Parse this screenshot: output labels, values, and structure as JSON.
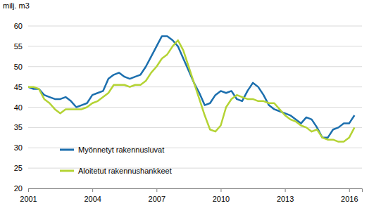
{
  "chart_data": {
    "type": "line",
    "ylabel": "milj. m3",
    "x": [
      2001,
      2001.25,
      2001.5,
      2001.75,
      2002,
      2002.25,
      2002.5,
      2002.75,
      2003,
      2003.25,
      2003.5,
      2003.75,
      2004,
      2004.25,
      2004.5,
      2004.75,
      2005,
      2005.25,
      2005.5,
      2005.75,
      2006,
      2006.25,
      2006.5,
      2006.75,
      2007,
      2007.25,
      2007.5,
      2007.75,
      2008,
      2008.25,
      2008.5,
      2008.75,
      2009,
      2009.25,
      2009.5,
      2009.75,
      2010,
      2010.25,
      2010.5,
      2010.75,
      2011,
      2011.25,
      2011.5,
      2011.75,
      2012,
      2012.25,
      2012.5,
      2012.75,
      2013,
      2013.25,
      2013.5,
      2013.75,
      2014,
      2014.25,
      2014.5,
      2014.75,
      2015,
      2015.25,
      2015.5,
      2015.75,
      2016,
      2016.25
    ],
    "series": [
      {
        "name": "Myönnetyt rakennusluvat",
        "color": "#1c6fae",
        "values": [
          45,
          44.5,
          44.5,
          43,
          42.5,
          42,
          42,
          42.5,
          41.5,
          40,
          40.5,
          41,
          43,
          43.5,
          44,
          47,
          48,
          48.5,
          47.5,
          47,
          47.5,
          48,
          50,
          52.5,
          55,
          57.5,
          57.5,
          56.5,
          55,
          52,
          49,
          46,
          43.5,
          40.5,
          41,
          43,
          44,
          43.5,
          44,
          42,
          41.5,
          44,
          46,
          45,
          43,
          40.5,
          39.5,
          39,
          38.5,
          38,
          37,
          36,
          37.5,
          37,
          35,
          32.5,
          32.5,
          34.5,
          35,
          36,
          36,
          38
        ]
      },
      {
        "name": "Aloitetut rakennushankkeet",
        "color": "#b4d334",
        "values": [
          45,
          45,
          44.5,
          42,
          41,
          39.5,
          38.5,
          39.5,
          39.5,
          39.5,
          39.5,
          40,
          41,
          41.5,
          42.5,
          43.5,
          45.5,
          45.5,
          45.5,
          45,
          45.5,
          45.5,
          46.5,
          48.5,
          50,
          52,
          53,
          55,
          56.5,
          54,
          50,
          46,
          42,
          38,
          34.5,
          34,
          35.5,
          40,
          42,
          43,
          42.5,
          42,
          42,
          41.5,
          41.5,
          41,
          41,
          39.5,
          38,
          37,
          36.5,
          35.5,
          35,
          34,
          34.5,
          32.5,
          32,
          32,
          31.5,
          31.5,
          32.5,
          35
        ]
      }
    ],
    "xlim": [
      2001,
      2016.6
    ],
    "xticks": [
      2001,
      2004,
      2007,
      2010,
      2013,
      2016
    ],
    "ylim": [
      20,
      60
    ],
    "yticks": [
      20,
      25,
      30,
      35,
      40,
      45,
      50,
      55,
      60
    ],
    "grid": true,
    "legend": "lower-left"
  }
}
